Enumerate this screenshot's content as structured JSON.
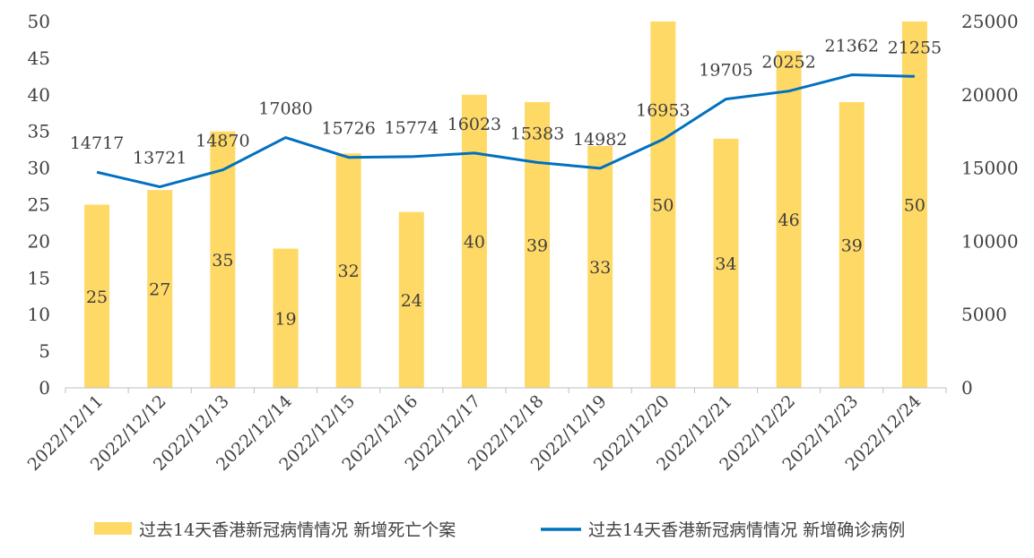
{
  "chart_data": {
    "type": "bar",
    "categories": [
      "2022/12/11",
      "2022/12/12",
      "2022/12/13",
      "2022/12/14",
      "2022/12/15",
      "2022/12/16",
      "2022/12/17",
      "2022/12/18",
      "2022/12/19",
      "2022/12/20",
      "2022/12/21",
      "2022/12/22",
      "2022/12/23",
      "2022/12/24"
    ],
    "series": [
      {
        "name": "过去14天香港新冠病情情况 新增死亡个案",
        "type": "bar",
        "axis": "left",
        "color": "#FFD966",
        "values": [
          25,
          27,
          35,
          19,
          32,
          24,
          40,
          39,
          33,
          50,
          34,
          46,
          39,
          50
        ]
      },
      {
        "name": "过去14天香港新冠病情情况 新增确诊病例",
        "type": "line",
        "axis": "right",
        "color": "#0070C0",
        "values": [
          14717,
          13721,
          14870,
          17080,
          15726,
          15774,
          16023,
          15383,
          14982,
          16953,
          19705,
          20252,
          21362,
          21255
        ]
      }
    ],
    "y_left": {
      "min": 0,
      "max": 50,
      "step": 5
    },
    "y_right": {
      "min": 0,
      "max": 25000,
      "step": 5000
    },
    "grid": false,
    "legend_position": "bottom"
  }
}
